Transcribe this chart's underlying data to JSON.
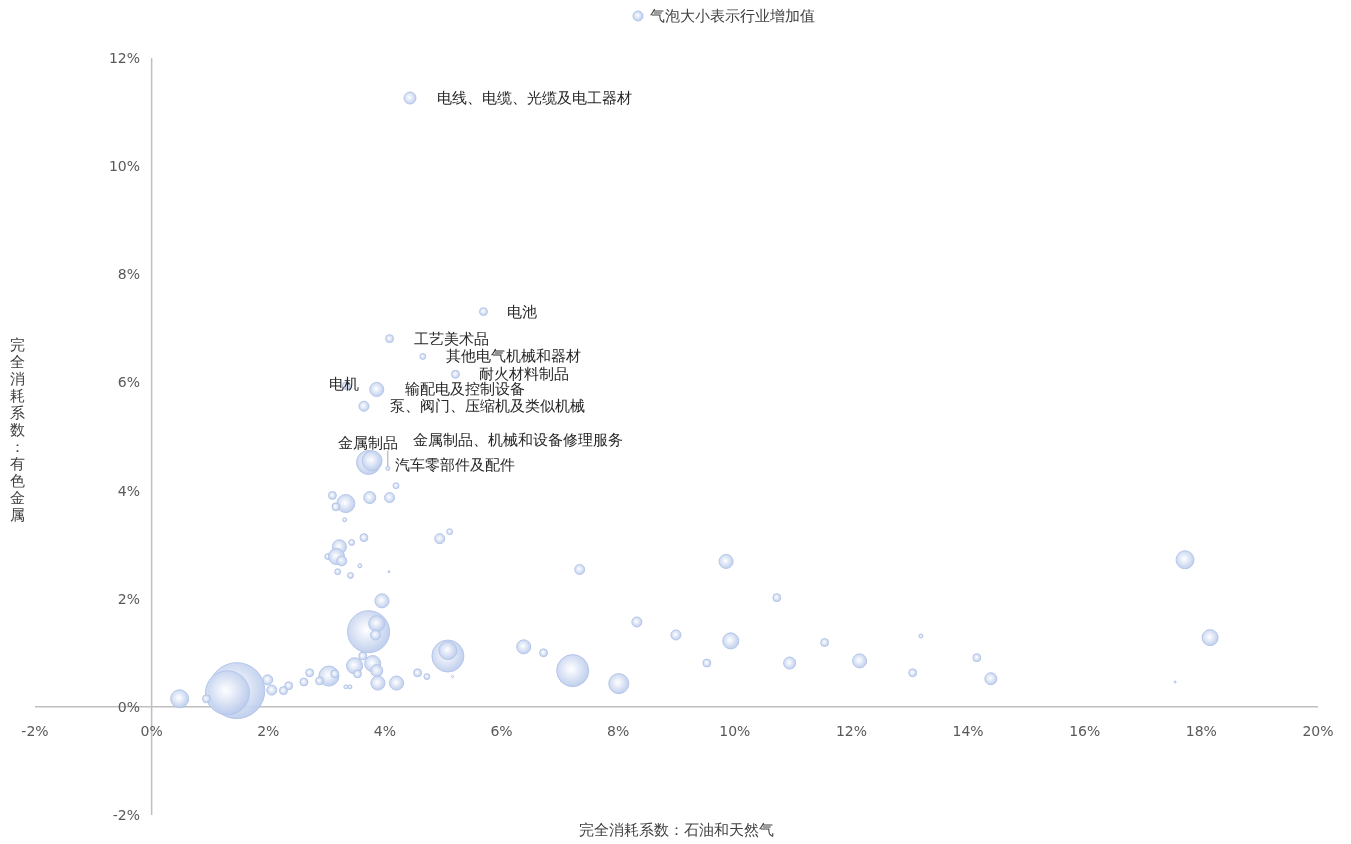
{
  "chart_data": {
    "type": "bubble",
    "xlabel": "完全消耗系数：石油和天然气",
    "ylabel": "完全消耗系数：有色金属",
    "x": [
      4.43,
      5.69,
      4.08,
      4.65,
      5.21,
      3.34,
      3.86,
      3.64,
      3.72,
      3.78,
      4.05,
      3.1,
      3.33,
      3.16,
      3.74,
      4.08,
      4.19,
      3.31,
      3.64,
      3.22,
      3.43,
      3.02,
      3.17,
      3.26,
      3.19,
      3.41,
      3.57,
      4.07,
      4.94,
      5.11,
      3.95,
      3.72,
      3.86,
      3.84,
      3.48,
      3.79,
      3.62,
      3.86,
      3.88,
      4.2,
      3.53,
      4.56,
      4.72,
      3.33,
      3.4,
      3.04,
      3.14,
      2.88,
      2.61,
      2.71,
      2.35,
      2.26,
      2.06,
      1.99,
      1.46,
      1.3,
      0.94,
      0.48,
      5.08,
      5.08,
      5.16,
      6.38,
      6.72,
      7.22,
      8.01,
      7.34,
      8.32,
      8.99,
      9.85,
      10.72,
      9.52,
      9.93,
      10.94,
      11.54,
      12.14,
      13.19,
      13.05,
      14.15,
      14.39,
      17.55,
      17.72,
      18.15
    ],
    "series": [
      {
        "name": "气泡大小表示行业增加值",
        "color": "#b4c6ea",
        "values": [
          11.26,
          7.31,
          6.81,
          6.48,
          6.15,
          5.94,
          5.87,
          5.56,
          4.52,
          4.55,
          4.41,
          3.91,
          3.76,
          3.7,
          3.87,
          3.87,
          4.09,
          3.46,
          3.13,
          2.96,
          3.04,
          2.78,
          2.78,
          2.7,
          2.5,
          2.43,
          2.61,
          2.5,
          3.11,
          3.24,
          1.96,
          1.39,
          1.54,
          1.33,
          0.76,
          0.8,
          0.94,
          0.67,
          0.44,
          0.44,
          0.61,
          0.63,
          0.56,
          0.37,
          0.37,
          0.57,
          0.61,
          0.48,
          0.46,
          0.63,
          0.39,
          0.3,
          0.31,
          0.5,
          0.3,
          0.26,
          0.15,
          0.15,
          0.94,
          1.04,
          0.56,
          1.11,
          1.0,
          0.67,
          0.43,
          2.54,
          1.57,
          1.33,
          2.69,
          2.02,
          0.81,
          1.22,
          0.81,
          1.19,
          0.85,
          1.31,
          0.63,
          0.91,
          0.52,
          0.46,
          2.72,
          1.28
        ],
        "sizes": [
          0.046,
          0.02,
          0.02,
          0.011,
          0.02,
          0.02,
          0.063,
          0.032,
          0.184,
          0.128,
          0.005,
          0.02,
          0.103,
          0.02,
          0.046,
          0.032,
          0.011,
          0.005,
          0.02,
          0.063,
          0.011,
          0.011,
          0.082,
          0.032,
          0.011,
          0.011,
          0.005,
          0.001,
          0.032,
          0.011,
          0.063,
          0.563,
          0.082,
          0.032,
          0.082,
          0.082,
          0.02,
          0.046,
          0.063,
          0.063,
          0.02,
          0.02,
          0.011,
          0.005,
          0.005,
          0.128,
          0.02,
          0.02,
          0.02,
          0.02,
          0.02,
          0.02,
          0.032,
          0.032,
          1,
          0.617,
          0.02,
          0.103,
          0.327,
          0.103,
          0.001,
          0.063,
          0.02,
          0.327,
          0.128,
          0.032,
          0.032,
          0.032,
          0.063,
          0.02,
          0.02,
          0.082,
          0.046,
          0.02,
          0.063,
          0.005,
          0.02,
          0.02,
          0.046,
          0.001,
          0.103,
          0.082
        ]
      }
    ],
    "annotations": [
      {
        "text": "电线、电缆、光缆及电工器材",
        "x": 4.43,
        "y": 11.26
      },
      {
        "text": "电池",
        "x": 5.69,
        "y": 7.31
      },
      {
        "text": "工艺美术品",
        "x": 4.08,
        "y": 6.81
      },
      {
        "text": "其他电气机械和器材",
        "x": 4.65,
        "y": 6.48
      },
      {
        "text": "耐火材料制品",
        "x": 5.21,
        "y": 6.15
      },
      {
        "text": "电机",
        "x": 3.34,
        "y": 5.94
      },
      {
        "text": "输配电及控制设备",
        "x": 3.86,
        "y": 5.87
      },
      {
        "text": "泵、阀门、压缩机及类似机械",
        "x": 3.64,
        "y": 5.56
      },
      {
        "text": "金属制品",
        "x": 3.72,
        "y": 4.52
      },
      {
        "text": "汽车零部件及配件",
        "x": 3.78,
        "y": 4.55
      },
      {
        "text": "金属制品、机械和设备修理服务",
        "x": 4.05,
        "y": 4.41
      }
    ],
    "xlim": [
      -2,
      20
    ],
    "ylim": [
      -2,
      12
    ],
    "xticks": [
      {
        "value": -2,
        "label": "-2%"
      },
      {
        "value": 0,
        "label": "0%"
      },
      {
        "value": 2,
        "label": "2%"
      },
      {
        "value": 4,
        "label": "4%"
      },
      {
        "value": 6,
        "label": "6%"
      },
      {
        "value": 8,
        "label": "8%"
      },
      {
        "value": 10,
        "label": "10%"
      },
      {
        "value": 12,
        "label": "12%"
      },
      {
        "value": 14,
        "label": "14%"
      },
      {
        "value": 16,
        "label": "16%"
      },
      {
        "value": 18,
        "label": "18%"
      },
      {
        "value": 20,
        "label": "20%"
      }
    ],
    "yticks": [
      {
        "value": -2,
        "label": "-2%"
      },
      {
        "value": 0,
        "label": "0%"
      },
      {
        "value": 2,
        "label": "2%"
      },
      {
        "value": 4,
        "label": "4%"
      },
      {
        "value": 6,
        "label": "6%"
      },
      {
        "value": 8,
        "label": "8%"
      },
      {
        "value": 10,
        "label": "10%"
      },
      {
        "value": 12,
        "label": "12%"
      }
    ],
    "legend": "top",
    "grid": false
  }
}
